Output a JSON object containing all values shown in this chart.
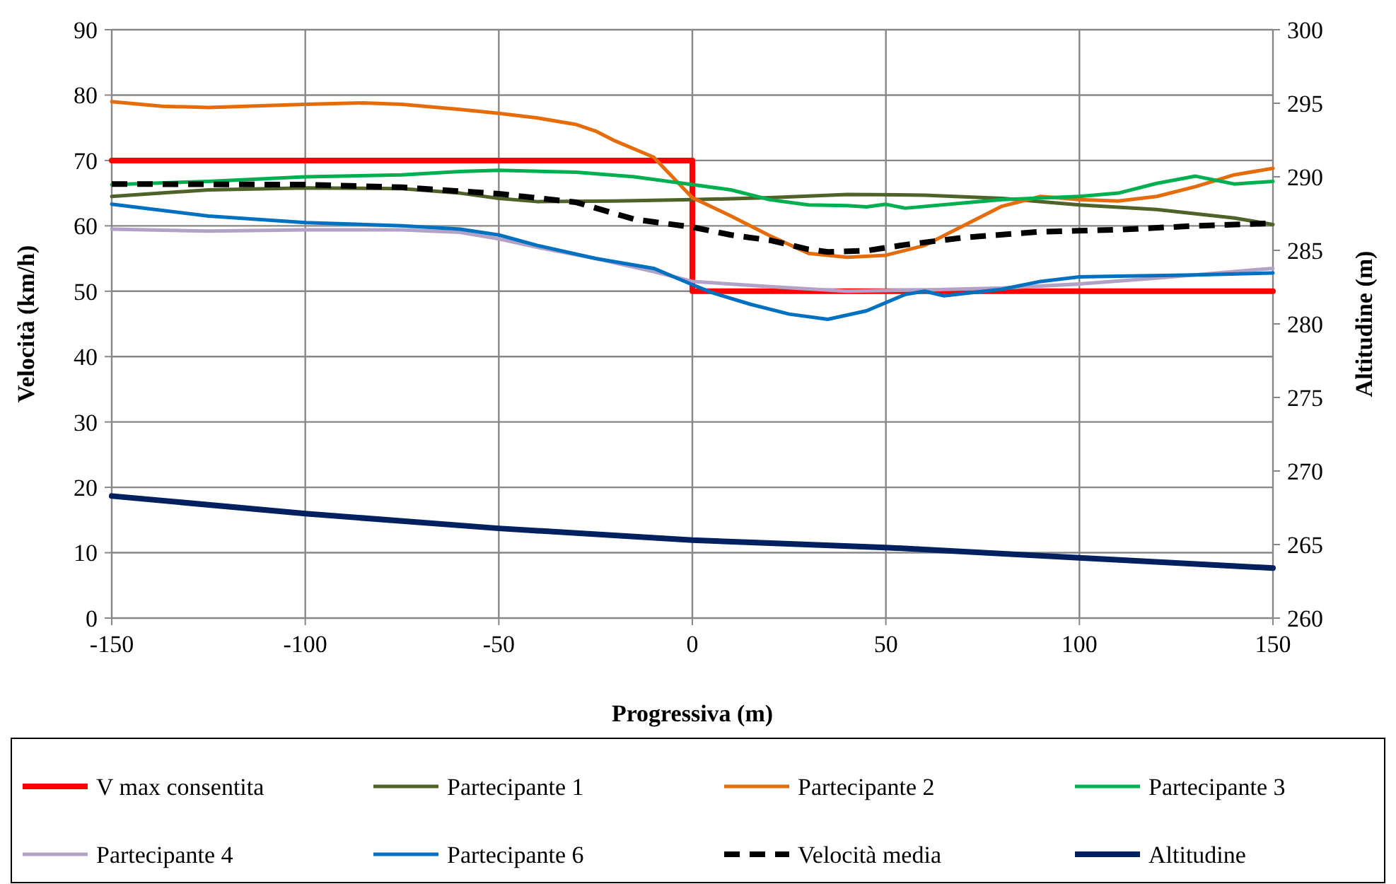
{
  "chart_data": {
    "type": "line",
    "xlabel": "Progressiva (m)",
    "ylabel": "Velocità (km/h)",
    "y2label": "Altitudine (m)",
    "xlim": [
      -150,
      150
    ],
    "xticks": [
      -150,
      -100,
      -50,
      0,
      50,
      100,
      150
    ],
    "ylim": [
      0,
      90
    ],
    "yticks": [
      0,
      10,
      20,
      30,
      40,
      50,
      60,
      70,
      80,
      90
    ],
    "y2lim": [
      260,
      300
    ],
    "y2ticks": [
      260,
      265,
      270,
      275,
      280,
      285,
      290,
      295,
      300
    ],
    "grid": true,
    "legend": "bottom",
    "series": [
      {
        "name": "V max consentita",
        "color": "#ff0000",
        "x": [
          -150,
          0,
          0,
          150
        ],
        "values": [
          70,
          70,
          50,
          50
        ]
      },
      {
        "name": "Partecipante 1",
        "color": "#4f6228",
        "x": [
          -150,
          -125,
          -100,
          -75,
          -60,
          -50,
          -40,
          -20,
          0,
          20,
          40,
          60,
          80,
          100,
          120,
          140,
          150
        ],
        "values": [
          64.5,
          65.5,
          65.8,
          65.7,
          65,
          64.2,
          63.7,
          63.8,
          64,
          64.3,
          64.8,
          64.7,
          64.2,
          63.2,
          62.5,
          61.2,
          60.2
        ]
      },
      {
        "name": "Partecipante 2",
        "color": "#e46c0a",
        "x": [
          -150,
          -137,
          -125,
          -100,
          -85,
          -75,
          -60,
          -50,
          -40,
          -30,
          -25,
          -20,
          -10,
          0,
          10,
          20,
          30,
          40,
          50,
          60,
          70,
          80,
          90,
          100,
          110,
          120,
          130,
          140,
          150
        ],
        "values": [
          79,
          78.3,
          78.1,
          78.6,
          78.8,
          78.6,
          77.8,
          77.2,
          76.5,
          75.5,
          74.5,
          73,
          70.5,
          64.3,
          61.5,
          58.5,
          55.8,
          55.2,
          55.5,
          57,
          60,
          63,
          64.5,
          64,
          63.8,
          64.5,
          66,
          67.8,
          68.8
        ]
      },
      {
        "name": "Partecipante 3",
        "color": "#00b050",
        "x": [
          -150,
          -125,
          -100,
          -75,
          -60,
          -50,
          -30,
          -15,
          0,
          10,
          20,
          30,
          40,
          45,
          50,
          55,
          70,
          80,
          100,
          110,
          120,
          130,
          140,
          150
        ],
        "values": [
          66.3,
          66.8,
          67.5,
          67.8,
          68.3,
          68.5,
          68.2,
          67.5,
          66.3,
          65.5,
          64,
          63.2,
          63.1,
          62.9,
          63.3,
          62.7,
          63.5,
          64,
          64.5,
          65,
          66.5,
          67.6,
          66.4,
          66.8
        ]
      },
      {
        "name": "Partecipante 4",
        "color": "#b3a2c7",
        "x": [
          -150,
          -125,
          -100,
          -75,
          -60,
          -50,
          -40,
          -25,
          -10,
          0,
          20,
          40,
          60,
          80,
          100,
          120,
          140,
          150
        ],
        "values": [
          59.5,
          59.2,
          59.4,
          59.4,
          59,
          58,
          56.7,
          55,
          53,
          51.5,
          50.7,
          50,
          50.2,
          50.5,
          51.1,
          52,
          53,
          53.5
        ]
      },
      {
        "name": "Partecipante 6",
        "color": "#0070c0",
        "x": [
          -150,
          -125,
          -100,
          -75,
          -60,
          -50,
          -40,
          -25,
          -10,
          0,
          5,
          15,
          25,
          35,
          45,
          55,
          60,
          65,
          80,
          90,
          100,
          110,
          130,
          150
        ],
        "values": [
          63.3,
          61.5,
          60.5,
          60,
          59.5,
          58.6,
          57,
          55,
          53.5,
          51,
          49.8,
          48,
          46.5,
          45.7,
          47,
          49.5,
          50,
          49.3,
          50.3,
          51.5,
          52.2,
          52.3,
          52.5,
          52.8
        ]
      },
      {
        "name": "Velocità media",
        "color": "#000000",
        "line_style": "dashed",
        "x": [
          -150,
          -100,
          -75,
          -50,
          -30,
          -15,
          0,
          10,
          20,
          30,
          35,
          45,
          55,
          70,
          90,
          110,
          130,
          150
        ],
        "values": [
          66.4,
          66.3,
          65.9,
          64.9,
          63.6,
          61,
          59.8,
          58.6,
          57.8,
          56.4,
          56,
          56.2,
          57.1,
          58.2,
          59.1,
          59.4,
          60,
          60.4
        ]
      },
      {
        "name": "Altitudine",
        "color": "#002060",
        "axis": "y2",
        "x": [
          -150,
          -100,
          -50,
          0,
          50,
          100,
          150
        ],
        "values": [
          268.3,
          267.1,
          266.1,
          265.3,
          264.8,
          264.1,
          263.4
        ]
      }
    ]
  }
}
